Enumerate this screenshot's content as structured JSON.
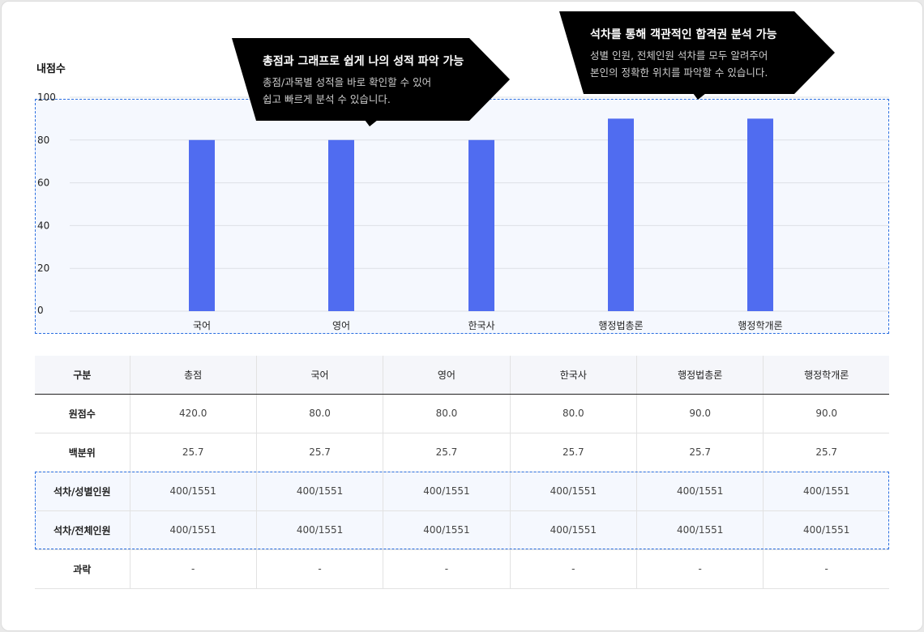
{
  "chart_data": {
    "type": "bar",
    "ylabel": "내점수",
    "categories": [
      "국어",
      "영어",
      "한국사",
      "행정법총론",
      "행정학개론"
    ],
    "values": [
      80,
      80,
      80,
      90,
      90
    ],
    "ylim": [
      0,
      100
    ],
    "yticks": [
      0,
      20,
      40,
      60,
      80,
      100
    ],
    "grid": true,
    "bar_color": "#506cf0"
  },
  "callouts": [
    {
      "title": "총점과 그래프로 쉽게 나의 성적 파악 가능",
      "line1": "총점/과목별 성적을 바로 확인할 수 있어",
      "line2": "쉽고 빠르게 분석 수 있습니다."
    },
    {
      "title": "석차를 통해 객관적인 합격권 분석 가능",
      "line1": "성별 인원, 전체인원 석차를 모두 알려주어",
      "line2": "본인의 정확한 위치를 파악할 수 있습니다."
    }
  ],
  "table": {
    "headers": [
      "구분",
      "총점",
      "국어",
      "영어",
      "한국사",
      "행정법총론",
      "행정학개론"
    ],
    "rows": [
      [
        "원점수",
        "420.0",
        "80.0",
        "80.0",
        "80.0",
        "90.0",
        "90.0"
      ],
      [
        "백분위",
        "25.7",
        "25.7",
        "25.7",
        "25.7",
        "25.7",
        "25.7"
      ],
      [
        "석차/성별인원",
        "400/1551",
        "400/1551",
        "400/1551",
        "400/1551",
        "400/1551",
        "400/1551"
      ],
      [
        "석차/전체인원",
        "400/1551",
        "400/1551",
        "400/1551",
        "400/1551",
        "400/1551",
        "400/1551"
      ],
      [
        "과락",
        "-",
        "-",
        "-",
        "-",
        "-",
        "-"
      ]
    ]
  }
}
